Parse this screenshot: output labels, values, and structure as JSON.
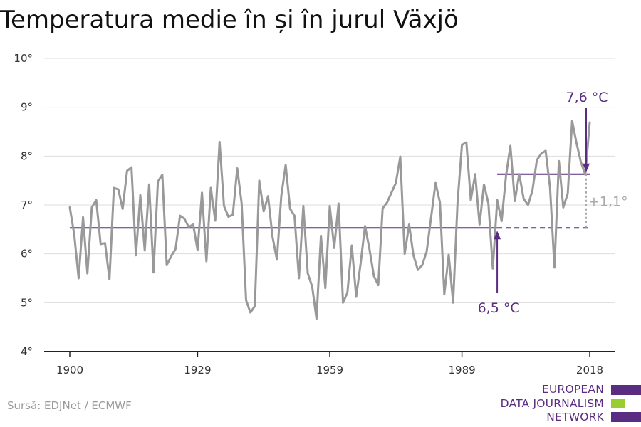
{
  "title": "Temperatura medie în și în jurul Växjö",
  "source": "Sursă: EDJNet / ECMWF",
  "logo": {
    "lines": [
      "EUROPEAN",
      "DATA JOURNALISM",
      "NETWORK"
    ],
    "bar_colors": [
      "#5a2d82",
      "#9acd32",
      "#5a2d82"
    ]
  },
  "colors": {
    "series": "#999999",
    "accent": "#5a2d82",
    "difference": "#aaaaaa",
    "grid": "#dddddd"
  },
  "chart_data": {
    "type": "line",
    "xlim": [
      1900,
      2018
    ],
    "ylim": [
      4,
      10
    ],
    "x_ticks": [
      1900,
      1929,
      1959,
      1989,
      2018
    ],
    "y_ticks": [
      4,
      5,
      6,
      7,
      8,
      9,
      10
    ],
    "y_tick_labels": [
      "4°",
      "5°",
      "6°",
      "7°",
      "8°",
      "9°",
      "10°"
    ],
    "grid": true,
    "series": [
      {
        "x_start": 1900,
        "values": [
          6.95,
          6.4,
          5.5,
          6.75,
          5.6,
          6.95,
          7.1,
          6.2,
          6.22,
          5.48,
          7.35,
          7.32,
          6.92,
          7.7,
          7.77,
          5.97,
          7.2,
          6.07,
          7.42,
          5.62,
          7.48,
          7.62,
          5.77,
          5.95,
          6.1,
          6.78,
          6.72,
          6.55,
          6.6,
          6.08,
          7.25,
          5.85,
          7.35,
          6.68,
          8.29,
          6.98,
          6.76,
          6.8,
          7.75,
          7.03,
          5.05,
          4.8,
          4.93,
          7.5,
          6.87,
          7.18,
          6.35,
          5.88,
          7.18,
          7.82,
          6.92,
          6.78,
          5.5,
          6.98,
          5.6,
          5.33,
          4.67,
          6.37,
          5.3,
          6.98,
          6.12,
          7.03,
          5.0,
          5.2,
          6.17,
          5.12,
          5.8,
          6.57,
          6.1,
          5.55,
          5.36,
          6.93,
          7.05,
          7.25,
          7.45,
          7.99,
          6.0,
          6.6,
          5.97,
          5.67,
          5.77,
          6.05,
          6.75,
          7.45,
          7.05,
          5.17,
          5.98,
          5.0,
          7.05,
          8.23,
          8.28,
          7.1,
          7.63,
          6.6,
          7.42,
          7.03,
          5.7,
          7.1,
          6.67,
          7.6,
          8.21,
          7.08,
          7.63,
          7.13,
          7.0,
          7.3,
          7.92,
          8.05,
          8.11,
          7.35,
          5.72,
          7.9,
          6.95,
          7.23,
          8.72,
          8.27,
          7.88,
          7.62,
          8.69
        ]
      }
    ],
    "reference_lines": [
      {
        "label": "6,5 °C",
        "value": 6.53,
        "solid_from": 1900,
        "solid_to": 1997,
        "dashed_to": 2018
      },
      {
        "label": "7,6 °C",
        "value": 7.63,
        "from": 1997,
        "to": 2018
      }
    ],
    "difference_label": "+1,1°"
  }
}
